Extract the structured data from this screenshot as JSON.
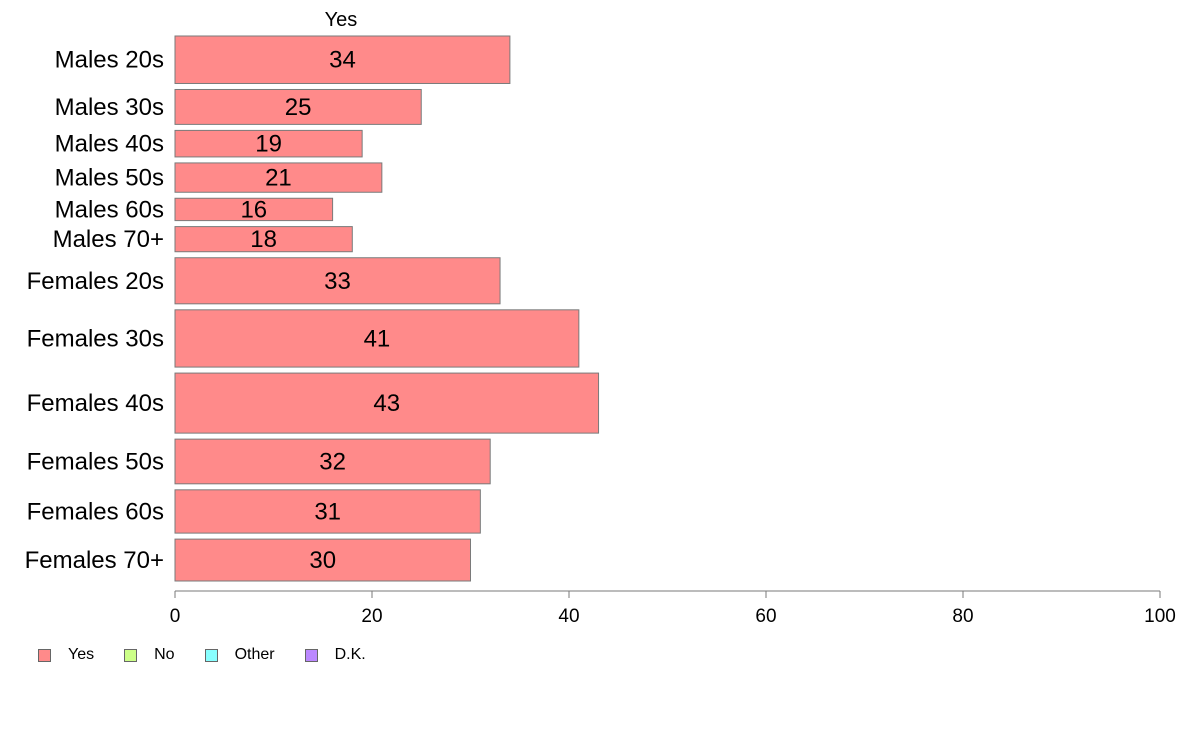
{
  "chart_data": {
    "type": "bar",
    "orientation": "horizontal",
    "segment_label": "Yes",
    "categories": [
      "Males 20s",
      "Males 30s",
      "Males 40s",
      "Males 50s",
      "Males 60s",
      "Males 70+",
      "Females 20s",
      "Females 30s",
      "Females 40s",
      "Females 50s",
      "Females 60s",
      "Females 70+"
    ],
    "series": [
      {
        "name": "Yes",
        "color": "#ff8a8a",
        "values": [
          34,
          25,
          19,
          21,
          16,
          18,
          33,
          41,
          43,
          32,
          31,
          30
        ]
      }
    ],
    "bar_weights": [
      34,
      25,
      19,
      21,
      16,
      18,
      33,
      41,
      43,
      32,
      31,
      30
    ],
    "xlim": [
      0,
      100
    ],
    "xticks": [
      0,
      20,
      40,
      60,
      80,
      100
    ],
    "legend": {
      "position": "bottom-left",
      "items": [
        {
          "label": "Yes",
          "color": "#ff8a8a"
        },
        {
          "label": "No",
          "color": "#ccff88"
        },
        {
          "label": "Other",
          "color": "#88ffff"
        },
        {
          "label": "D.K.",
          "color": "#bb88ff"
        }
      ]
    }
  }
}
